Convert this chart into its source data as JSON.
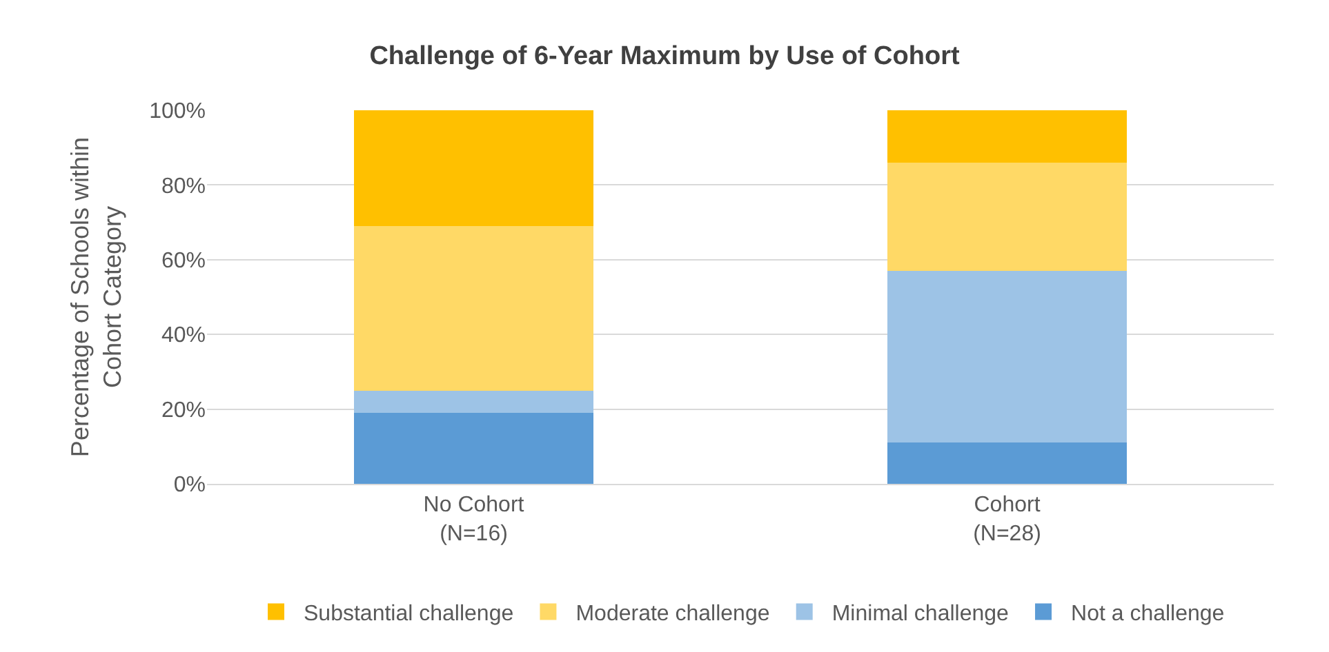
{
  "chart_data": {
    "type": "bar",
    "stacked": true,
    "title": "Challenge of 6-Year Maximum by Use of Cohort",
    "ylabel": "Percentage of Schools within\nCohort Category",
    "categories": [
      "No Cohort\n(N=16)",
      "Cohort\n(N=28)"
    ],
    "series": [
      {
        "name": "Not a challenge",
        "color": "#5b9bd5",
        "values": [
          19,
          11
        ]
      },
      {
        "name": "Minimal challenge",
        "color": "#9dc3e6",
        "values": [
          6,
          46
        ]
      },
      {
        "name": "Moderate challenge",
        "color": "#ffd966",
        "values": [
          44,
          29
        ]
      },
      {
        "name": "Substantial challenge",
        "color": "#ffc000",
        "values": [
          31,
          14
        ]
      }
    ],
    "ylim": [
      0,
      100
    ],
    "yticks": [
      {
        "value": 0,
        "label": "0%"
      },
      {
        "value": 20,
        "label": "20%"
      },
      {
        "value": 40,
        "label": "40%"
      },
      {
        "value": 60,
        "label": "60%"
      },
      {
        "value": 80,
        "label": "80%"
      },
      {
        "value": 100,
        "label": "100%"
      }
    ],
    "grid": "y",
    "legend": "bottom"
  }
}
